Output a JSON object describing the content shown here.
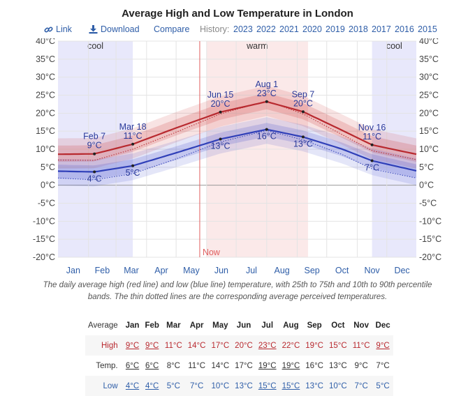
{
  "page": {
    "title": "Average High and Low Temperature in London",
    "toolbar": {
      "link_label": "Link",
      "download_label": "Download",
      "compare_label": "Compare",
      "history_label": "History:",
      "years": [
        "2023",
        "2022",
        "2021",
        "2020",
        "2019",
        "2018",
        "2017",
        "2016",
        "2015"
      ]
    },
    "caption": "The daily average high (red line) and low (blue line) temperature, with 25th to 75th and 10th to 90th percentile bands. The thin dotted lines are the corresponding average perceived temperatures."
  },
  "chart_data": {
    "type": "line",
    "x_unit": "day of year",
    "months": [
      "Jan",
      "Feb",
      "Mar",
      "Apr",
      "May",
      "Jun",
      "Jul",
      "Aug",
      "Sep",
      "Oct",
      "Nov",
      "Dec"
    ],
    "yticks": [
      "40°C",
      "35°C",
      "30°C",
      "25°C",
      "20°C",
      "15°C",
      "10°C",
      "5°C",
      "0°C",
      "-5°C",
      "-10°C",
      "-15°C",
      "-20°C"
    ],
    "ylim": [
      -20,
      40
    ],
    "seasons": [
      {
        "label": "cool",
        "start": "Jan 1",
        "end": "Mar 18",
        "color": "#e8e8fb"
      },
      {
        "label": "warm",
        "start": "Jun 1",
        "end": "Sep 12",
        "color": "#fbe9e9"
      },
      {
        "label": "cool",
        "start": "Nov 16",
        "end": "Dec 31",
        "color": "#e8e8fb"
      }
    ],
    "now_label": "Now",
    "now_day": 145,
    "series": [
      {
        "name": "high",
        "color": "#b8292f",
        "points": [
          [
            1,
            8.6
          ],
          [
            38,
            8.7
          ],
          [
            77,
            11.4
          ],
          [
            120,
            15.8
          ],
          [
            166,
            20.3
          ],
          [
            213,
            23.2
          ],
          [
            250,
            20.4
          ],
          [
            290,
            15.2
          ],
          [
            320,
            11.2
          ],
          [
            365,
            8.6
          ]
        ]
      },
      {
        "name": "low",
        "color": "#2f3fb8",
        "points": [
          [
            1,
            3.9
          ],
          [
            38,
            3.7
          ],
          [
            77,
            5.4
          ],
          [
            120,
            8.9
          ],
          [
            166,
            12.8
          ],
          [
            213,
            15.5
          ],
          [
            250,
            13.4
          ],
          [
            290,
            10.0
          ],
          [
            320,
            6.8
          ],
          [
            365,
            4.0
          ]
        ]
      },
      {
        "name": "perceived high",
        "points": [
          [
            1,
            7.0
          ],
          [
            38,
            6.9
          ],
          [
            77,
            10.0
          ],
          [
            120,
            14.6
          ],
          [
            166,
            19.8
          ],
          [
            213,
            23.4
          ],
          [
            250,
            19.8
          ],
          [
            290,
            14.0
          ],
          [
            320,
            9.6
          ],
          [
            365,
            7.1
          ]
        ]
      },
      {
        "name": "perceived low",
        "points": [
          [
            1,
            2.0
          ],
          [
            38,
            1.5
          ],
          [
            77,
            3.2
          ],
          [
            120,
            7.2
          ],
          [
            166,
            12.0
          ],
          [
            213,
            15.2
          ],
          [
            250,
            12.6
          ],
          [
            290,
            8.5
          ],
          [
            320,
            4.5
          ],
          [
            365,
            2.0
          ]
        ]
      }
    ],
    "annotations": [
      {
        "date": "Feb 7",
        "day": 38,
        "value": "9°C",
        "y": 8.7,
        "pos": "above"
      },
      {
        "date": "Mar 18",
        "day": 77,
        "value": "11°C",
        "y": 11.4,
        "pos": "above"
      },
      {
        "date": "Jun 15",
        "day": 166,
        "value": "20°C",
        "y": 20.3,
        "pos": "above"
      },
      {
        "date": "Aug 1",
        "day": 213,
        "value": "23°C",
        "y": 23.2,
        "pos": "above"
      },
      {
        "date": "Sep 7",
        "day": 250,
        "value": "20°C",
        "y": 20.4,
        "pos": "above"
      },
      {
        "date": "Nov 16",
        "day": 320,
        "value": "11°C",
        "y": 11.2,
        "pos": "above"
      },
      {
        "date": "",
        "day": 38,
        "value": "4°C",
        "y": 3.7,
        "pos": "below"
      },
      {
        "date": "",
        "day": 77,
        "value": "5°C",
        "y": 5.4,
        "pos": "below"
      },
      {
        "date": "",
        "day": 166,
        "value": "13°C",
        "y": 12.8,
        "pos": "below"
      },
      {
        "date": "",
        "day": 213,
        "value": "16°C",
        "y": 15.5,
        "pos": "below"
      },
      {
        "date": "",
        "day": 250,
        "value": "13°C",
        "y": 13.4,
        "pos": "below"
      },
      {
        "date": "",
        "day": 320,
        "value": "7°C",
        "y": 6.8,
        "pos": "below"
      }
    ]
  },
  "table": {
    "header_label": "Average",
    "months": [
      "Jan",
      "Feb",
      "Mar",
      "Apr",
      "May",
      "Jun",
      "Jul",
      "Aug",
      "Sep",
      "Oct",
      "Nov",
      "Dec"
    ],
    "rows": [
      {
        "label": "High",
        "values": [
          "9°C",
          "9°C",
          "11°C",
          "14°C",
          "17°C",
          "20°C",
          "23°C",
          "22°C",
          "19°C",
          "15°C",
          "11°C",
          "9°C"
        ],
        "underlined": [
          0,
          1,
          6,
          11
        ]
      },
      {
        "label": "Temp.",
        "values": [
          "6°C",
          "6°C",
          "8°C",
          "11°C",
          "14°C",
          "17°C",
          "19°C",
          "19°C",
          "16°C",
          "13°C",
          "9°C",
          "7°C"
        ],
        "underlined": [
          0,
          1,
          6,
          7
        ]
      },
      {
        "label": "Low",
        "values": [
          "4°C",
          "4°C",
          "5°C",
          "7°C",
          "10°C",
          "13°C",
          "15°C",
          "15°C",
          "13°C",
          "10°C",
          "7°C",
          "5°C"
        ],
        "underlined": [
          0,
          1,
          6,
          7
        ]
      }
    ]
  }
}
